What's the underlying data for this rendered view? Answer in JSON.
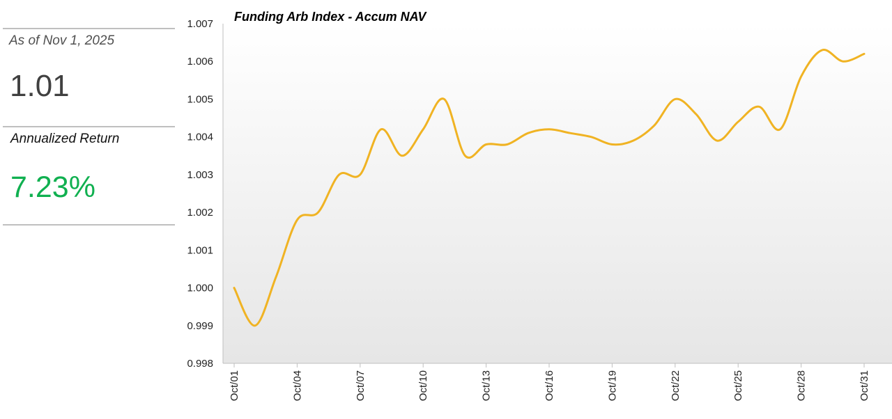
{
  "summary": {
    "as_of_label": "As of Nov 1, 2025",
    "nav_value": "1.01",
    "annualized_label": "Annualized Return",
    "annualized_value": "7.23%",
    "annualized_color": "#10b050"
  },
  "chart_data": {
    "type": "line",
    "title": "Funding Arb Index - Accum NAV",
    "xlabel": "",
    "ylabel": "",
    "ylim": [
      0.998,
      1.007
    ],
    "grid": false,
    "background": "vertical gradient white to light gray",
    "line_color": "#f0b323",
    "yticks": [
      "0.998",
      "0.999",
      "1.000",
      "1.001",
      "1.002",
      "1.003",
      "1.004",
      "1.005",
      "1.006",
      "1.007"
    ],
    "xticks": [
      "Oct/01",
      "Oct/04",
      "Oct/07",
      "Oct/10",
      "Oct/13",
      "Oct/16",
      "Oct/19",
      "Oct/22",
      "Oct/25",
      "Oct/28",
      "Oct/31"
    ],
    "series": [
      {
        "x": [
          1,
          2,
          3,
          4,
          5,
          6,
          7,
          8,
          9,
          10,
          11,
          12,
          13,
          14,
          15,
          16,
          17,
          18,
          19,
          20,
          21,
          22,
          23,
          24,
          25,
          26,
          27,
          28,
          29,
          30,
          31
        ],
        "values": [
          1.0,
          0.999,
          1.0003,
          1.0018,
          1.002,
          1.003,
          1.003,
          1.0042,
          1.0035,
          1.0042,
          1.005,
          1.0035,
          1.0038,
          1.0038,
          1.0041,
          1.0042,
          1.0041,
          1.004,
          1.0038,
          1.0039,
          1.0043,
          1.005,
          1.0046,
          1.0039,
          1.0044,
          1.0048,
          1.0042,
          1.0056,
          1.0063,
          1.006,
          1.0062
        ]
      }
    ]
  }
}
